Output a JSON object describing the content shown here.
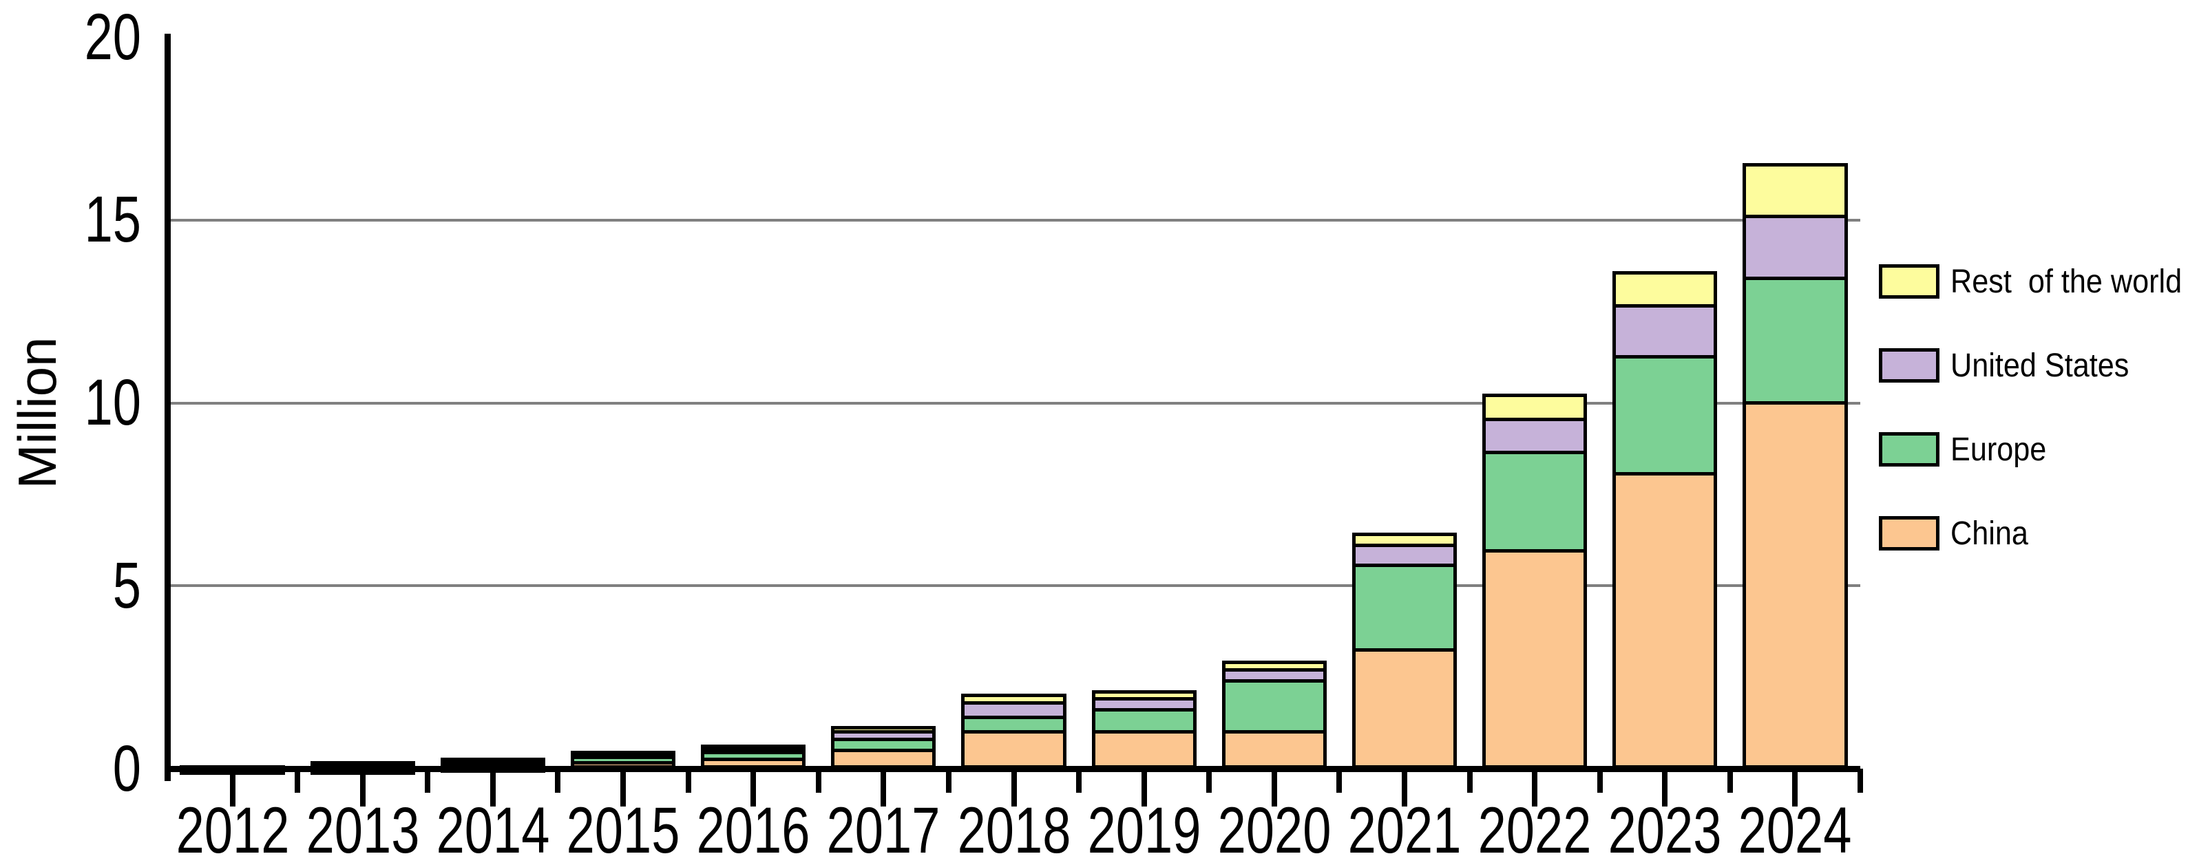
{
  "chart_data": {
    "type": "bar",
    "stacked": true,
    "title": "",
    "xlabel": "",
    "ylabel": "Million",
    "ylim": [
      0,
      20
    ],
    "yticks": [
      0,
      5,
      10,
      15,
      20
    ],
    "gridlines_at": [
      5,
      10,
      15
    ],
    "grid_color": "#808080",
    "bar_outline_color": "#000000",
    "categories": [
      "2012",
      "2013",
      "2014",
      "2015",
      "2016",
      "2017",
      "2018",
      "2019",
      "2020",
      "2021",
      "2022",
      "2023",
      "2024"
    ],
    "series": [
      {
        "name": "China",
        "color": "#FCC690",
        "values": [
          0.01,
          0.02,
          0.07,
          0.2,
          0.3,
          0.55,
          1.05,
          1.05,
          1.05,
          3.3,
          6.0,
          8.1,
          10.05
        ]
      },
      {
        "name": "Europe",
        "color": "#7CD194",
        "values": [
          0.03,
          0.06,
          0.1,
          0.15,
          0.18,
          0.3,
          0.4,
          0.6,
          1.4,
          2.3,
          2.7,
          3.2,
          3.4
        ]
      },
      {
        "name": "United States",
        "color": "#C6B2D9",
        "values": [
          0.05,
          0.1,
          0.12,
          0.11,
          0.15,
          0.2,
          0.4,
          0.3,
          0.3,
          0.55,
          0.9,
          1.4,
          1.7
        ]
      },
      {
        "name": "Rest  of the world",
        "color": "#FDFC9D",
        "values": [
          0.01,
          0.02,
          0.01,
          0.02,
          0.03,
          0.12,
          0.2,
          0.2,
          0.2,
          0.3,
          0.65,
          0.9,
          1.4
        ]
      }
    ],
    "totals": [
      0.1,
      0.2,
      0.3,
      0.48,
      0.66,
      1.17,
      2.05,
      2.15,
      2.95,
      6.45,
      10.25,
      13.6,
      16.55
    ],
    "legend": {
      "position": "right",
      "items_top_to_bottom": [
        "Rest  of the world",
        "United States",
        "Europe",
        "China"
      ]
    }
  }
}
